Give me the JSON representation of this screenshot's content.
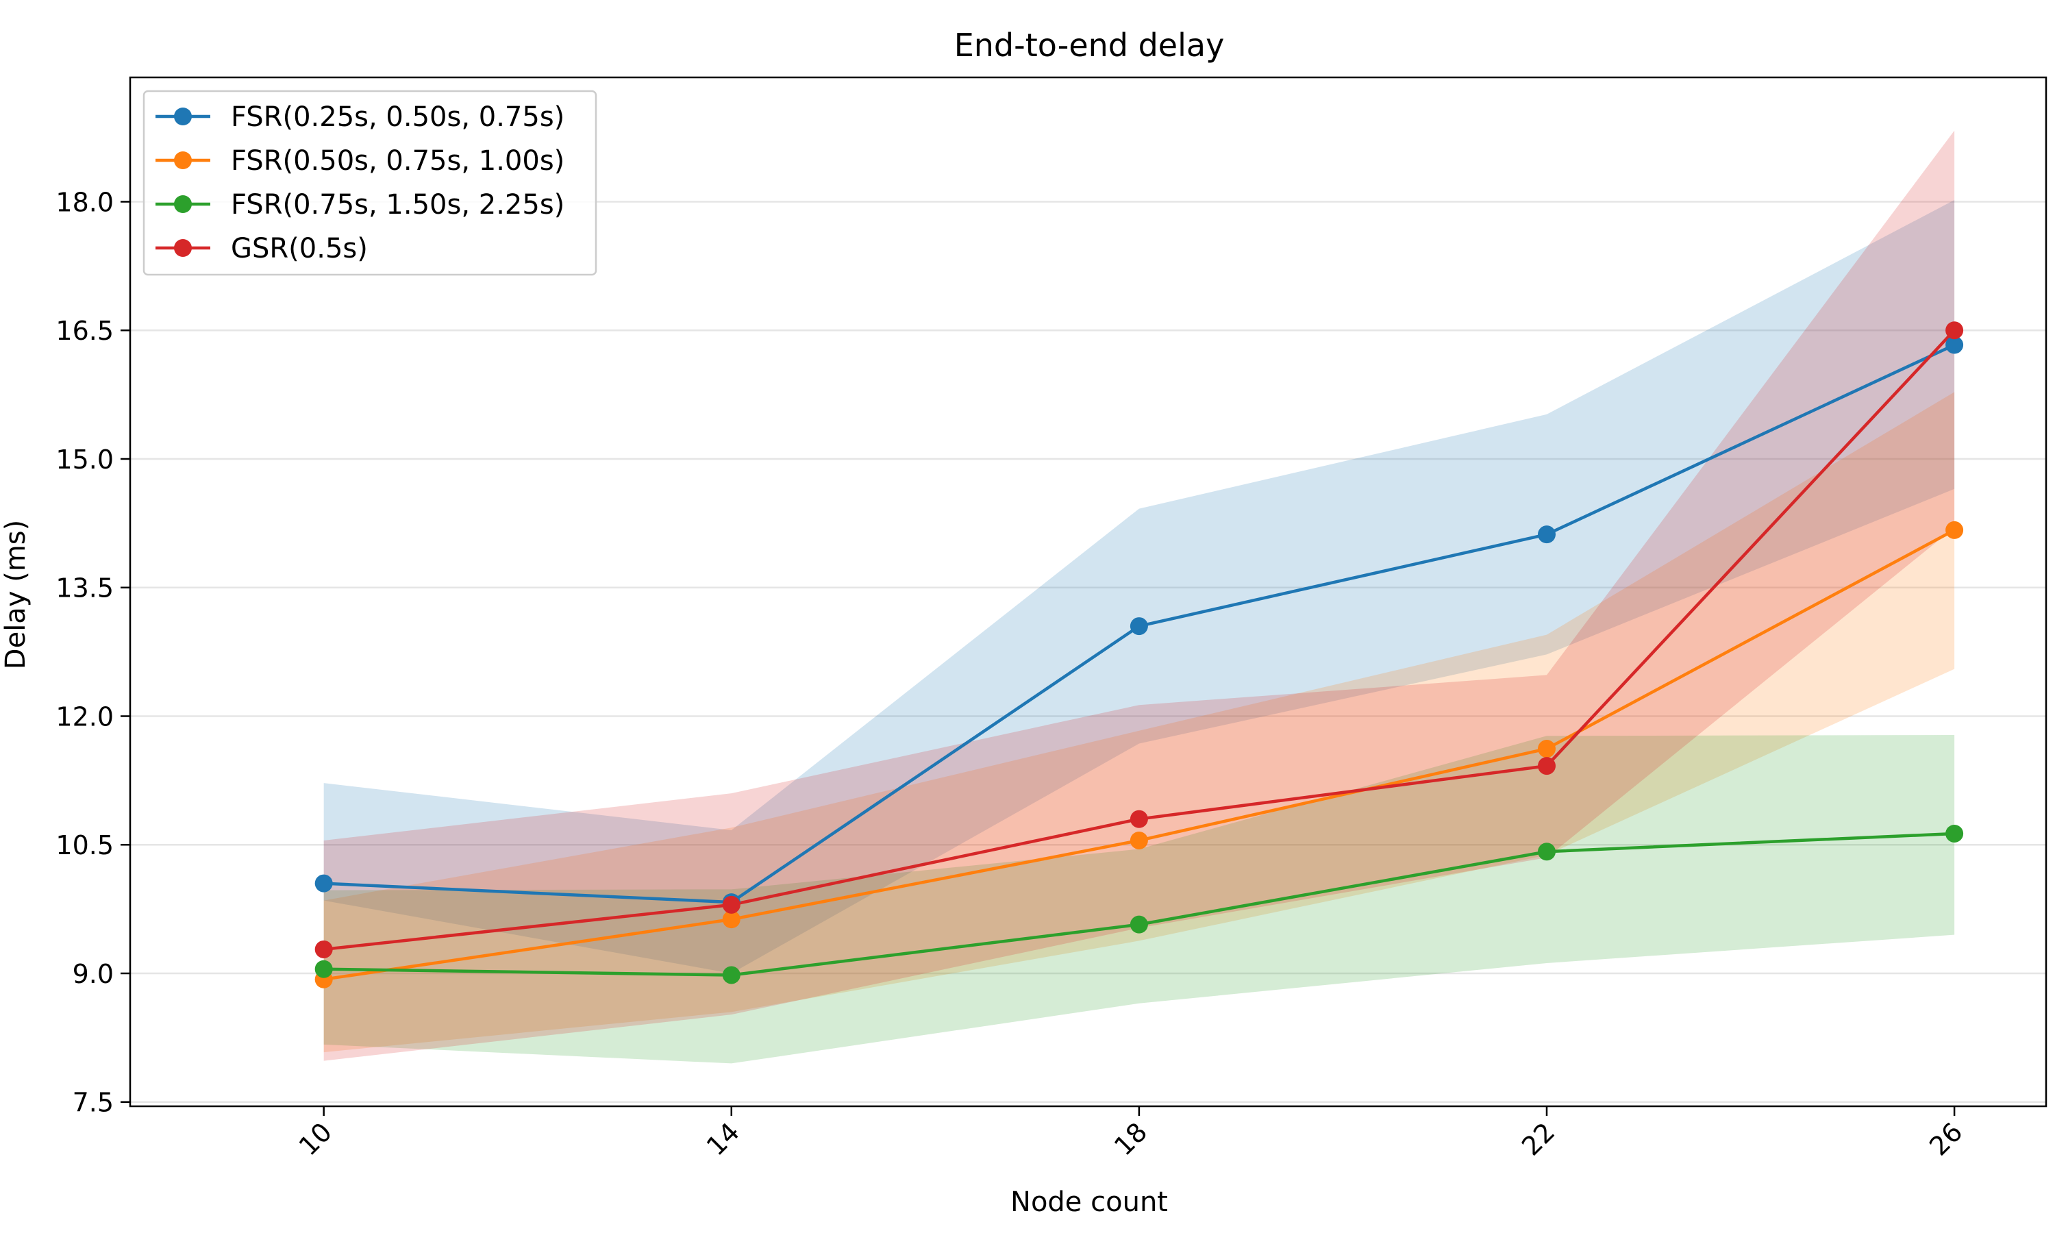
{
  "chart_data": {
    "type": "line",
    "title": "End-to-end delay",
    "xlabel": "Node count",
    "ylabel": "Delay (ms)",
    "categories": [
      "10",
      "14",
      "18",
      "22",
      "26"
    ],
    "x": [
      10,
      14,
      18,
      22,
      26
    ],
    "xlim": [
      8.1,
      26.9
    ],
    "ylim": [
      7.45,
      19.45
    ],
    "yticks": [
      7.5,
      9.0,
      10.5,
      12.0,
      13.5,
      15.0,
      16.5,
      18.0
    ],
    "ytick_labels": [
      "7.5",
      "9.0",
      "10.5",
      "12.0",
      "13.5",
      "15.0",
      "16.5",
      "18.0"
    ],
    "grid": "horizontal",
    "legend_position": "top-left",
    "series": [
      {
        "name": "FSR(0.25s, 0.50s, 0.75s)",
        "color": "#1f77b4",
        "values": [
          10.05,
          9.83,
          13.05,
          14.12,
          16.33
        ],
        "lower": [
          9.85,
          9.0,
          11.68,
          12.72,
          14.65
        ],
        "upper": [
          11.22,
          10.67,
          14.42,
          15.52,
          18.02
        ]
      },
      {
        "name": "FSR(0.50s, 0.75s, 1.00s)",
        "color": "#ff7f0e",
        "values": [
          8.93,
          9.63,
          10.55,
          11.62,
          14.17
        ],
        "lower": [
          8.08,
          8.55,
          9.38,
          10.38,
          12.55
        ],
        "upper": [
          9.85,
          10.7,
          11.83,
          12.95,
          15.78
        ]
      },
      {
        "name": "FSR(0.75s, 1.50s, 2.25s)",
        "color": "#2ca02c",
        "values": [
          9.05,
          8.98,
          9.57,
          10.42,
          10.63
        ],
        "lower": [
          8.17,
          7.95,
          8.65,
          9.12,
          9.45
        ],
        "upper": [
          9.97,
          9.98,
          10.45,
          11.77,
          11.78
        ]
      },
      {
        "name": "GSR(0.5s)",
        "color": "#d62728",
        "values": [
          9.28,
          9.8,
          10.8,
          11.42,
          16.5
        ],
        "lower": [
          7.98,
          8.52,
          9.53,
          10.35,
          14.2
        ],
        "upper": [
          10.55,
          11.1,
          12.13,
          12.48,
          18.83
        ]
      }
    ]
  }
}
